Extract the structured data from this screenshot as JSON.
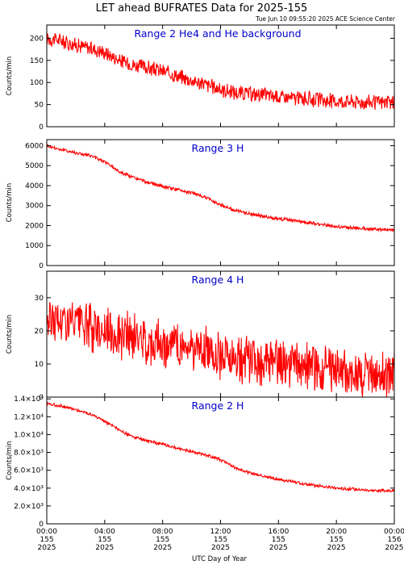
{
  "header": {
    "title": "LET ahead BUFRATES Data for 2025-155",
    "timestamp": "Tue Jun 10 09:55:20 2025 ACE Science Center"
  },
  "colors": {
    "series": "#ff0000",
    "panel_title": "#0000cc",
    "axes": "#000000"
  },
  "chart_data": [
    {
      "type": "line",
      "title": "Range 2 He4 and He background",
      "ylabel": "Counts/min",
      "ylim": [
        0,
        230
      ],
      "yticks": [
        0,
        50,
        100,
        150,
        200
      ],
      "ytick_labels": [
        "0",
        "50",
        "100",
        "150",
        "200"
      ],
      "series": [
        {
          "values": [
            [
              0,
              200
            ],
            [
              1,
              195
            ],
            [
              2,
              185
            ],
            [
              3,
              178
            ],
            [
              4,
              168
            ],
            [
              5,
              150
            ],
            [
              6,
              140
            ],
            [
              7,
              133
            ],
            [
              8,
              125
            ],
            [
              9,
              115
            ],
            [
              10,
              105
            ],
            [
              11,
              95
            ],
            [
              12,
              85
            ],
            [
              13,
              77
            ],
            [
              14,
              74
            ],
            [
              15,
              72
            ],
            [
              16,
              68
            ],
            [
              17,
              65
            ],
            [
              18,
              63
            ],
            [
              19,
              60
            ],
            [
              20,
              58
            ],
            [
              21,
              57
            ],
            [
              22,
              56
            ],
            [
              23,
              55
            ],
            [
              24,
              55
            ]
          ],
          "noise": 12
        }
      ]
    },
    {
      "type": "line",
      "title": "Range 3 H",
      "ylabel": "Counts/min",
      "ylim": [
        0,
        6300
      ],
      "yticks": [
        0,
        1000,
        2000,
        3000,
        4000,
        5000,
        6000
      ],
      "ytick_labels": [
        "0",
        "1000",
        "2000",
        "3000",
        "4000",
        "5000",
        "6000"
      ],
      "series": [
        {
          "values": [
            [
              0,
              6000
            ],
            [
              1,
              5800
            ],
            [
              2,
              5650
            ],
            [
              3,
              5500
            ],
            [
              4,
              5200
            ],
            [
              5,
              4700
            ],
            [
              6,
              4400
            ],
            [
              7,
              4150
            ],
            [
              8,
              3950
            ],
            [
              9,
              3800
            ],
            [
              10,
              3650
            ],
            [
              11,
              3400
            ],
            [
              12,
              3050
            ],
            [
              13,
              2750
            ],
            [
              14,
              2600
            ],
            [
              15,
              2450
            ],
            [
              16,
              2350
            ],
            [
              17,
              2250
            ],
            [
              18,
              2150
            ],
            [
              19,
              2050
            ],
            [
              20,
              1950
            ],
            [
              21,
              1900
            ],
            [
              22,
              1850
            ],
            [
              23,
              1800
            ],
            [
              24,
              1800
            ]
          ],
          "noise": 60
        }
      ]
    },
    {
      "type": "line",
      "title": "Range 4 H",
      "ylabel": "Counts/min",
      "ylim": [
        0,
        38
      ],
      "yticks": [
        0,
        10,
        20,
        30
      ],
      "ytick_labels": [
        "0",
        "10",
        "20",
        "30"
      ],
      "series": [
        {
          "values": [
            [
              0,
              24
            ],
            [
              1,
              23
            ],
            [
              2,
              22
            ],
            [
              3,
              21
            ],
            [
              4,
              20
            ],
            [
              5,
              19
            ],
            [
              6,
              18
            ],
            [
              7,
              17
            ],
            [
              8,
              16
            ],
            [
              9,
              15.5
            ],
            [
              10,
              15
            ],
            [
              11,
              14
            ],
            [
              12,
              13
            ],
            [
              13,
              12
            ],
            [
              14,
              11
            ],
            [
              15,
              10.5
            ],
            [
              16,
              10
            ],
            [
              17,
              9.5
            ],
            [
              18,
              9
            ],
            [
              19,
              8.5
            ],
            [
              20,
              8
            ],
            [
              21,
              7.5
            ],
            [
              22,
              7
            ],
            [
              23,
              7
            ],
            [
              24,
              7
            ]
          ],
          "noise": 5
        }
      ]
    },
    {
      "type": "line",
      "title": "Range 2 H",
      "ylabel": "Counts/min",
      "ylim": [
        0,
        14200
      ],
      "yticks": [
        0,
        2000,
        4000,
        6000,
        8000,
        10000,
        12000,
        14000
      ],
      "ytick_labels": [
        "0",
        "2.0×10³",
        "4.0×10³",
        "6.0×10³",
        "8.0×10³",
        "1.0×10⁴",
        "1.2×10⁴",
        "1.4×10⁴"
      ],
      "series": [
        {
          "values": [
            [
              0,
              13500
            ],
            [
              1,
              13200
            ],
            [
              2,
              12800
            ],
            [
              3,
              12300
            ],
            [
              4,
              11500
            ],
            [
              5,
              10500
            ],
            [
              6,
              9700
            ],
            [
              7,
              9300
            ],
            [
              8,
              8900
            ],
            [
              9,
              8500
            ],
            [
              10,
              8100
            ],
            [
              11,
              7700
            ],
            [
              12,
              7200
            ],
            [
              13,
              6300
            ],
            [
              14,
              5700
            ],
            [
              15,
              5300
            ],
            [
              16,
              5000
            ],
            [
              17,
              4700
            ],
            [
              18,
              4400
            ],
            [
              19,
              4200
            ],
            [
              20,
              4000
            ],
            [
              21,
              3900
            ],
            [
              22,
              3800
            ],
            [
              23,
              3700
            ],
            [
              24,
              3700
            ]
          ],
          "noise": 120
        }
      ]
    }
  ],
  "x_axis": {
    "xlabel": "UTC Day of Year",
    "xlim": [
      0,
      24
    ],
    "ticks": [
      {
        "x": 0,
        "time": "00:00",
        "doy": "155",
        "year": "2025"
      },
      {
        "x": 4,
        "time": "04:00",
        "doy": "155",
        "year": "2025"
      },
      {
        "x": 8,
        "time": "08:00",
        "doy": "155",
        "year": "2025"
      },
      {
        "x": 12,
        "time": "12:00",
        "doy": "155",
        "year": "2025"
      },
      {
        "x": 16,
        "time": "16:00",
        "doy": "155",
        "year": "2025"
      },
      {
        "x": 20,
        "time": "20:00",
        "doy": "155",
        "year": "2025"
      },
      {
        "x": 24,
        "time": "00:00",
        "doy": "156",
        "year": "2025"
      }
    ]
  }
}
